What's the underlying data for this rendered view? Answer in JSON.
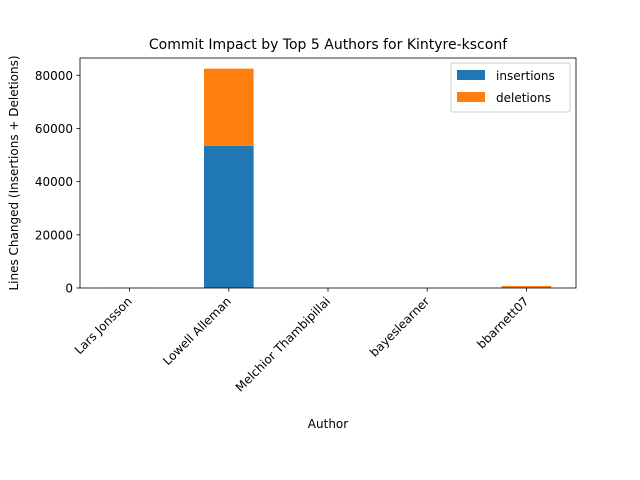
{
  "chart_data": {
    "type": "bar",
    "stacked": true,
    "title": "Commit Impact by Top 5 Authors for Kintyre-ksconf",
    "xlabel": "Author",
    "ylabel": "Lines Changed (Insertions + Deletions)",
    "categories": [
      "Lars Jonsson",
      "Lowell Alleman",
      "Melchior Thambipillai",
      "bayeslearner",
      "bbarnett07"
    ],
    "series": [
      {
        "name": "insertions",
        "color": "#1f77b4",
        "values": [
          30,
          53500,
          20,
          10,
          300
        ]
      },
      {
        "name": "deletions",
        "color": "#ff7f0e",
        "values": [
          20,
          29000,
          10,
          10,
          450
        ]
      }
    ],
    "ylim": [
      0,
      86500
    ],
    "yticks": [
      0,
      20000,
      40000,
      60000,
      80000
    ],
    "grid": false,
    "legend_position": "top-right"
  }
}
